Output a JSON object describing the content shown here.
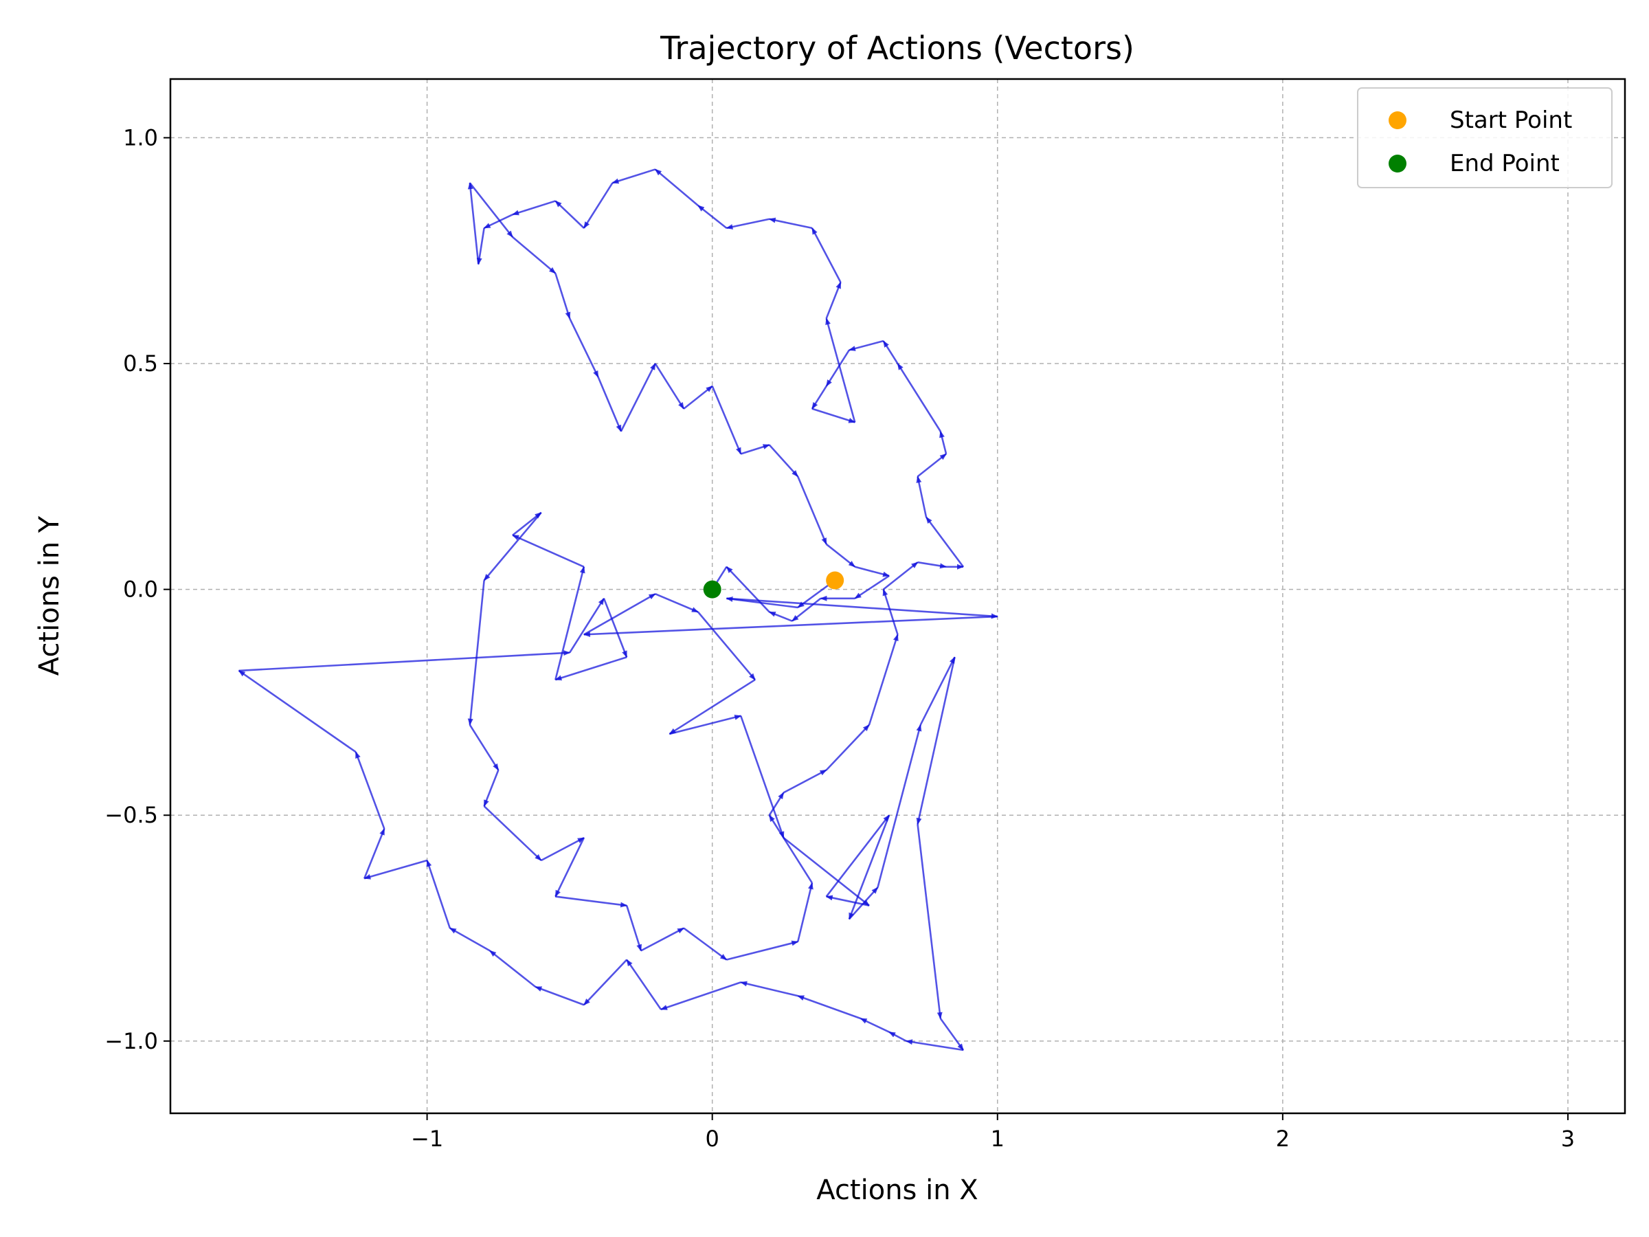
{
  "chart_data": {
    "type": "line",
    "title": "Trajectory of Actions (Vectors)",
    "xlabel": "Actions in X",
    "ylabel": "Actions in Y",
    "xlim": [
      -1.9,
      3.2
    ],
    "ylim": [
      -1.16,
      1.13
    ],
    "xticks": [
      -1,
      0,
      1,
      2,
      3
    ],
    "xtick_labels": [
      "−1",
      "0",
      "1",
      "2",
      "3"
    ],
    "yticks": [
      -1.0,
      -0.5,
      0.0,
      0.5,
      1.0
    ],
    "ytick_labels": [
      "−1.0",
      "−0.5",
      "0.0",
      "0.5",
      "1.0"
    ],
    "grid": true,
    "legend_position": "top-right",
    "colors": {
      "vector": "#1010dd",
      "start": "#ffa500",
      "end": "#008000"
    },
    "start_point": {
      "name": "Start Point",
      "x": 0.43,
      "y": 0.02
    },
    "end_point": {
      "name": "End Point",
      "x": 0.0,
      "y": 0.0
    },
    "path": [
      [
        0.43,
        0.02
      ],
      [
        0.3,
        -0.04
      ],
      [
        0.05,
        -0.02
      ],
      [
        1.0,
        -0.06
      ],
      [
        -0.45,
        -0.1
      ],
      [
        -0.2,
        -0.01
      ],
      [
        -0.05,
        -0.05
      ],
      [
        0.15,
        -0.2
      ],
      [
        -0.15,
        -0.32
      ],
      [
        0.1,
        -0.28
      ],
      [
        0.25,
        -0.55
      ],
      [
        0.55,
        -0.7
      ],
      [
        0.4,
        -0.68
      ],
      [
        0.62,
        -0.5
      ],
      [
        0.48,
        -0.73
      ],
      [
        0.58,
        -0.66
      ],
      [
        0.73,
        -0.3
      ],
      [
        0.85,
        -0.15
      ],
      [
        0.72,
        -0.52
      ],
      [
        0.8,
        -0.95
      ],
      [
        0.88,
        -1.02
      ],
      [
        0.68,
        -1.0
      ],
      [
        0.62,
        -0.98
      ],
      [
        0.52,
        -0.95
      ],
      [
        0.3,
        -0.9
      ],
      [
        0.1,
        -0.87
      ],
      [
        -0.18,
        -0.93
      ],
      [
        -0.3,
        -0.82
      ],
      [
        -0.45,
        -0.92
      ],
      [
        -0.62,
        -0.88
      ],
      [
        -0.78,
        -0.8
      ],
      [
        -0.92,
        -0.75
      ],
      [
        -1.0,
        -0.6
      ],
      [
        -1.22,
        -0.64
      ],
      [
        -1.15,
        -0.53
      ],
      [
        -1.25,
        -0.36
      ],
      [
        -1.66,
        -0.18
      ],
      [
        -0.5,
        -0.14
      ],
      [
        -0.38,
        -0.02
      ],
      [
        -0.3,
        -0.15
      ],
      [
        -0.55,
        -0.2
      ],
      [
        -0.45,
        0.05
      ],
      [
        -0.7,
        0.12
      ],
      [
        -0.6,
        0.17
      ],
      [
        -0.8,
        0.02
      ],
      [
        -0.85,
        -0.3
      ],
      [
        -0.75,
        -0.4
      ],
      [
        -0.8,
        -0.48
      ],
      [
        -0.6,
        -0.6
      ],
      [
        -0.45,
        -0.55
      ],
      [
        -0.55,
        -0.68
      ],
      [
        -0.3,
        -0.7
      ],
      [
        -0.25,
        -0.8
      ],
      [
        -0.1,
        -0.75
      ],
      [
        0.05,
        -0.82
      ],
      [
        0.3,
        -0.78
      ],
      [
        0.35,
        -0.65
      ],
      [
        0.2,
        -0.5
      ],
      [
        0.25,
        -0.45
      ],
      [
        0.4,
        -0.4
      ],
      [
        0.55,
        -0.3
      ],
      [
        0.65,
        -0.1
      ],
      [
        0.6,
        0.0
      ],
      [
        0.72,
        0.06
      ],
      [
        0.82,
        0.05
      ],
      [
        0.88,
        0.05
      ],
      [
        0.75,
        0.16
      ],
      [
        0.72,
        0.25
      ],
      [
        0.82,
        0.3
      ],
      [
        0.8,
        0.35
      ],
      [
        0.65,
        0.5
      ],
      [
        0.6,
        0.55
      ],
      [
        0.48,
        0.53
      ],
      [
        0.4,
        0.45
      ],
      [
        0.35,
        0.4
      ],
      [
        0.5,
        0.37
      ],
      [
        0.4,
        0.6
      ],
      [
        0.45,
        0.68
      ],
      [
        0.35,
        0.8
      ],
      [
        0.2,
        0.82
      ],
      [
        0.05,
        0.8
      ],
      [
        -0.05,
        0.85
      ],
      [
        -0.2,
        0.93
      ],
      [
        -0.35,
        0.9
      ],
      [
        -0.45,
        0.8
      ],
      [
        -0.55,
        0.86
      ],
      [
        -0.7,
        0.83
      ],
      [
        -0.8,
        0.8
      ],
      [
        -0.82,
        0.72
      ],
      [
        -0.85,
        0.9
      ],
      [
        -0.7,
        0.78
      ],
      [
        -0.55,
        0.7
      ],
      [
        -0.5,
        0.6
      ],
      [
        -0.4,
        0.47
      ],
      [
        -0.32,
        0.35
      ],
      [
        -0.2,
        0.5
      ],
      [
        -0.1,
        0.4
      ],
      [
        0.0,
        0.45
      ],
      [
        0.1,
        0.3
      ],
      [
        0.2,
        0.32
      ],
      [
        0.3,
        0.25
      ],
      [
        0.4,
        0.1
      ],
      [
        0.5,
        0.05
      ],
      [
        0.62,
        0.03
      ],
      [
        0.5,
        -0.02
      ],
      [
        0.38,
        -0.02
      ],
      [
        0.28,
        -0.07
      ],
      [
        0.2,
        -0.05
      ],
      [
        0.05,
        0.05
      ],
      [
        0.0,
        0.0
      ]
    ]
  }
}
